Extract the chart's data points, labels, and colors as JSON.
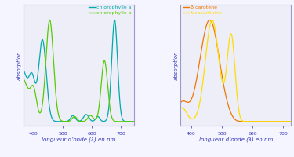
{
  "fig_bg": "#f5f5ff",
  "plot_bg": "#eeeef8",
  "xlabel": "longueur d’onde (λ) en nm",
  "ylabel": "absorption",
  "xlabel_color": "#3333bb",
  "ylabel_color": "#3333bb",
  "tick_color": "#3333bb",
  "spine_color": "#9999cc",
  "xlim_left": [
    365,
    745
  ],
  "xlim_right": [
    365,
    725
  ],
  "xticks_left": [
    400,
    500,
    600,
    700
  ],
  "xticks_right": [
    400,
    500,
    600,
    700
  ],
  "chloro_a_color": "#00aaaa",
  "chloro_b_color": "#55cc00",
  "carotene_color": "#ee7700",
  "fucoxanthine_color": "#ffdd00",
  "legend1": [
    "chlorophylle a",
    "chlorophylle b"
  ],
  "legend2": [
    "β carotène",
    "fucoxanthine"
  ],
  "legend_color1": [
    "#00aaaa",
    "#55cc00"
  ],
  "legend_color2": [
    "#ee7700",
    "#ffdd00"
  ]
}
